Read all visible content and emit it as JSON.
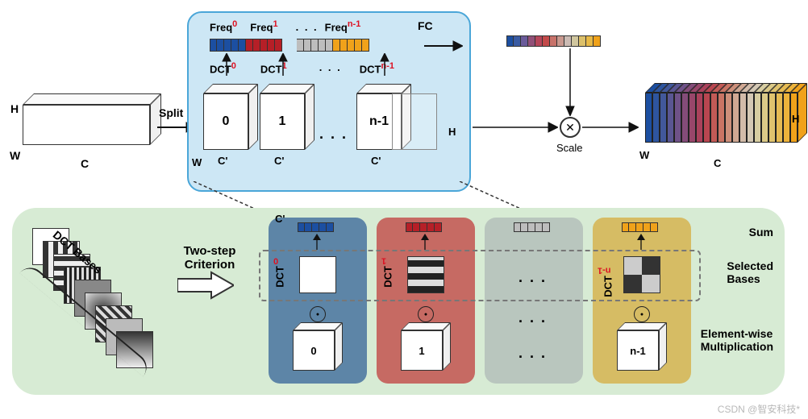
{
  "watermark": "CSDN @智安科技*",
  "top": {
    "dims": {
      "H": "H",
      "W": "W",
      "C": "C"
    },
    "split": "Split",
    "fc": "FC",
    "scale": "Scale",
    "freq": [
      {
        "label": "Freq",
        "sup": "0",
        "color": "#1c4fa1",
        "cells": 5
      },
      {
        "label": "Freq",
        "sup": "1",
        "color": "#b61f27",
        "cells": 5
      },
      {
        "label": "",
        "sup": "",
        "color": "#bdbdbd",
        "cells": 5
      },
      {
        "label": "Freq",
        "sup": "n-1",
        "color": "#f0a21a",
        "cells": 5
      }
    ],
    "freq_ellipsis": ". . .",
    "dct_labels": [
      {
        "label": "DCT",
        "sup": "0"
      },
      {
        "label": "DCT",
        "sup": "1"
      },
      {
        "label": "DCT",
        "sup": "n-1"
      }
    ],
    "dct_ellipsis": ". . .",
    "cubes": [
      {
        "idx": "0",
        "C": "C'"
      },
      {
        "idx": "1",
        "C": "C'"
      },
      {
        "idx": "n-1",
        "C": "C'"
      }
    ],
    "cubes_ellipsis": ". . .",
    "blue_dims_right": "H",
    "blue_dims_left_W": "W",
    "fc_gradient": [
      "#1c4fa1",
      "#3a5ba2",
      "#6a5b9a",
      "#925078",
      "#b6465a",
      "#c34a4a",
      "#c8726a",
      "#c9998f",
      "#cbbbb4",
      "#d0c69e",
      "#dcc06a",
      "#e7b946",
      "#f0a21a"
    ],
    "out_gradient": [
      "#1c4fa1",
      "#2e559f",
      "#42589b",
      "#5a5693",
      "#6f5288",
      "#844c79",
      "#98466a",
      "#aa415b",
      "#b84650",
      "#c25a56",
      "#c97464",
      "#cd8f7a",
      "#d0a893",
      "#d2bba9",
      "#d4c8b4",
      "#d7cda1",
      "#dbc987",
      "#e0c36e",
      "#e6bb53",
      "#edb33b",
      "#f0a21a"
    ],
    "out_dims": {
      "H": "H",
      "W": "W",
      "C": "C"
    }
  },
  "bottom": {
    "bases_label": "DCT Bases",
    "twostep": "Two-step\nCriterion",
    "C_prime": "C'",
    "cols": [
      {
        "color": "#1c4fa1",
        "dct": "DCT",
        "sup": "0",
        "idx": "0"
      },
      {
        "color": "#b61f27",
        "dct": "DCT",
        "sup": "1",
        "idx": "1"
      },
      {
        "color": "#bdbdbd",
        "dct": "",
        "sup": "",
        "idx": ""
      },
      {
        "color": "#f0a21a",
        "dct": "DCT",
        "sup": "n-1",
        "idx": "n-1"
      }
    ],
    "ellipsis": ". . .",
    "side": {
      "sum": "Sum",
      "selected": "Selected\nBases",
      "elem": "Element-wise\nMultiplication"
    }
  }
}
